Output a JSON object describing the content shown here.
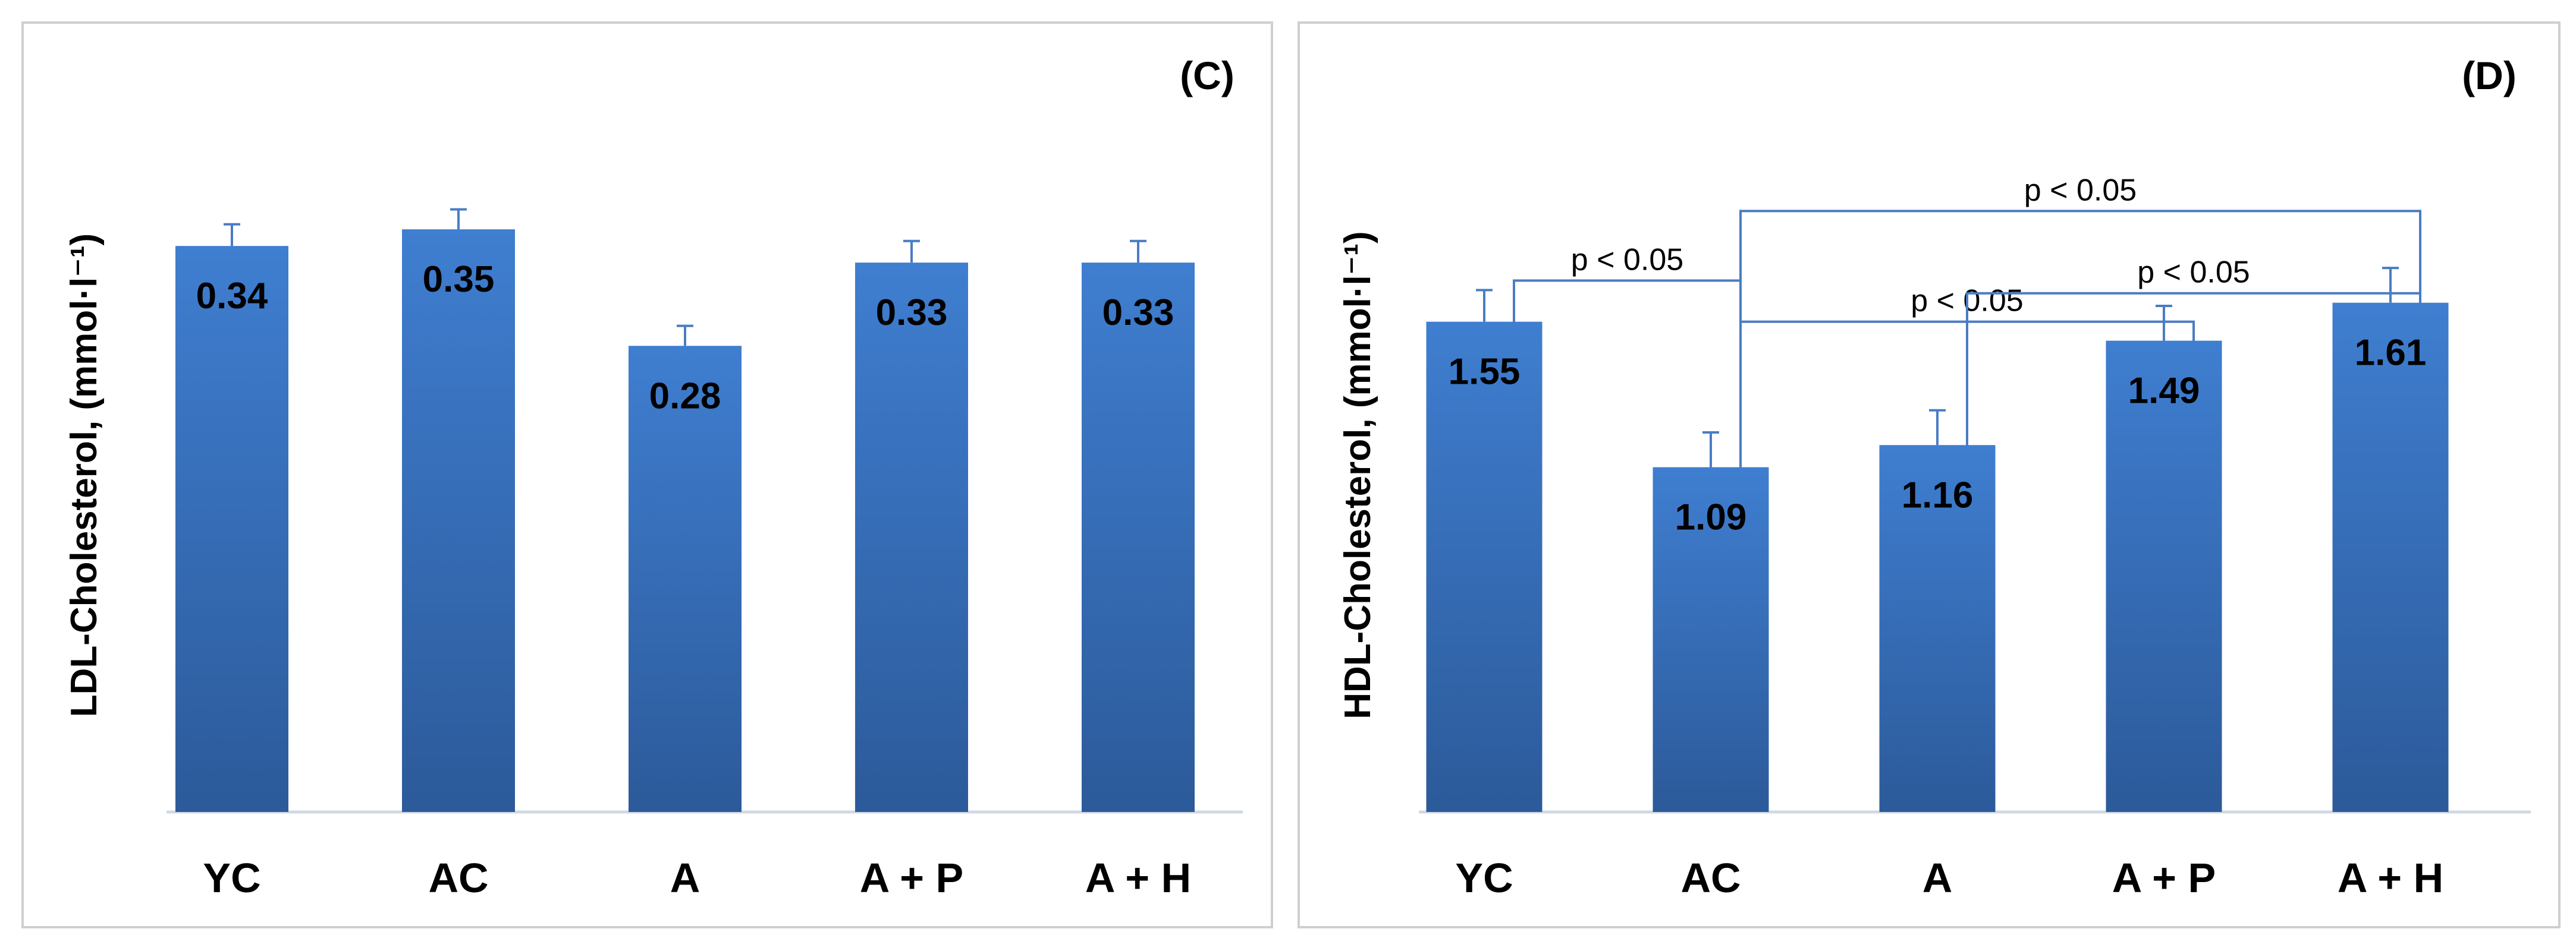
{
  "colors": {
    "bar_top": "#3f7ed0",
    "bar_bottom": "#2c5a9a",
    "error_bar": "#4a7cc4",
    "bracket": "#4a7cc4",
    "axis": "#d0d8e4",
    "border": "#cfcfcf"
  },
  "chart_data": [
    {
      "type": "bar",
      "panel_label": "(C)",
      "title": "",
      "xlabel": "",
      "ylabel": "LDL-Cholesterol, (mmol·l⁻¹)",
      "categories": [
        "YC",
        "AC",
        "A",
        "A + P",
        "A + H"
      ],
      "values": [
        0.34,
        0.35,
        0.28,
        0.33,
        0.33
      ],
      "value_labels": [
        "0.34",
        "0.35",
        "0.28",
        "0.33",
        "0.33"
      ],
      "errors": [
        0.013,
        0.012,
        0.012,
        0.013,
        0.013
      ],
      "ylim": [
        0,
        0.38
      ],
      "grid": false,
      "annotations": []
    },
    {
      "type": "bar",
      "panel_label": "(D)",
      "title": "",
      "xlabel": "",
      "ylabel": "HDL-Cholesterol, (mmol·l⁻¹)",
      "categories": [
        "YC",
        "AC",
        "A",
        "A + P",
        "A + H"
      ],
      "values": [
        1.55,
        1.09,
        1.16,
        1.49,
        1.61
      ],
      "value_labels": [
        "1.55",
        "1.09",
        "1.16",
        "1.49",
        "1.61"
      ],
      "errors": [
        0.1,
        0.11,
        0.11,
        0.11,
        0.11
      ],
      "ylim": [
        0,
        2.0
      ],
      "grid": false,
      "annotations": [
        {
          "from": 0,
          "to": 1,
          "text": "p < 0.05",
          "level": 1.68
        },
        {
          "from": 1,
          "to": 3,
          "text": "p < 0.05",
          "level": 1.55
        },
        {
          "from": 2,
          "to": 4,
          "text": "p < 0.05",
          "level": 1.64
        },
        {
          "from": 1,
          "to": 4,
          "text": "p < 0.05",
          "level": 1.9
        }
      ]
    }
  ]
}
